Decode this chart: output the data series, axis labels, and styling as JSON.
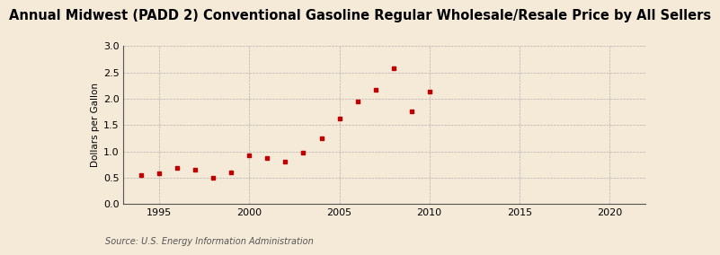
{
  "title": "Annual Midwest (PADD 2) Conventional Gasoline Regular Wholesale/Resale Price by All Sellers",
  "ylabel": "Dollars per Gallon",
  "source": "Source: U.S. Energy Information Administration",
  "years": [
    1994,
    1995,
    1996,
    1997,
    1998,
    1999,
    2000,
    2001,
    2002,
    2003,
    2004,
    2005,
    2006,
    2007,
    2008,
    2009,
    2010
  ],
  "values": [
    0.55,
    0.58,
    0.68,
    0.65,
    0.5,
    0.6,
    0.93,
    0.87,
    0.81,
    0.97,
    1.25,
    1.63,
    1.95,
    2.17,
    2.57,
    1.76,
    2.14
  ],
  "marker_color": "#c00000",
  "bg_color": "#f5ead8",
  "xlim": [
    1993,
    2022
  ],
  "ylim": [
    0.0,
    3.0
  ],
  "xticks": [
    1995,
    2000,
    2005,
    2010,
    2015,
    2020
  ],
  "yticks": [
    0.0,
    0.5,
    1.0,
    1.5,
    2.0,
    2.5,
    3.0
  ],
  "title_fontsize": 10.5,
  "ylabel_fontsize": 7.5,
  "source_fontsize": 7,
  "tick_fontsize": 8
}
